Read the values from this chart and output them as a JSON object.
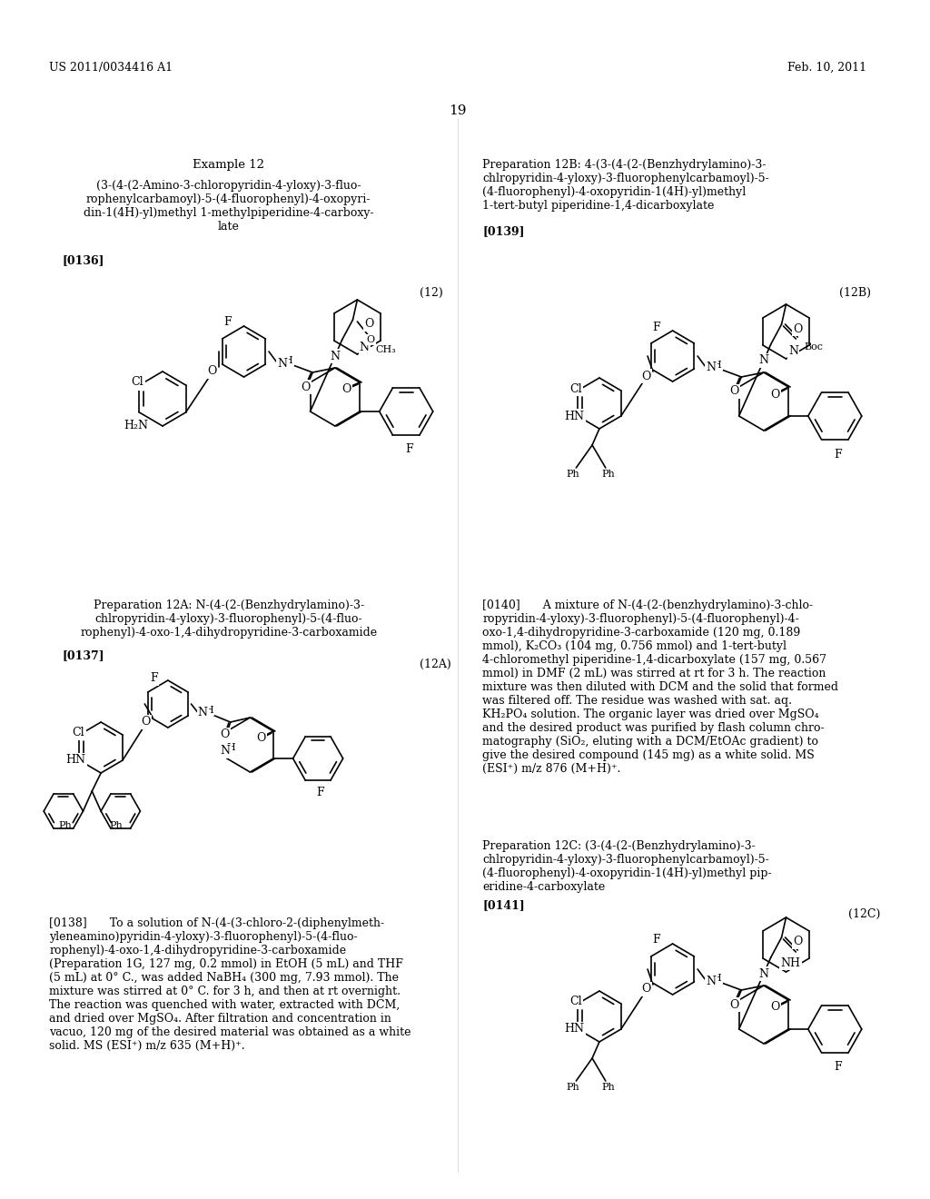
{
  "background_color": "#ffffff",
  "page_header_left": "US 2011/0034416 A1",
  "page_header_right": "Feb. 10, 2011",
  "page_number": "19",
  "left_title": "Example 12",
  "left_subtitle": "(3-(4-(2-Amino-3-chloropyridin-4-yloxy)-3-fluo-\nrophenylcarbamoyl)-5-(4-fluorophenyl)-4-oxopyri-\ndin-1(4H)-yl)methyl 1-methylpiperidine-4-carboxy-\nlate",
  "left_ref": "[0136]",
  "left_compound_label": "(12)",
  "prep12A_title": "Preparation 12A: N-(4-(2-(Benzhydrylamino)-3-\nchlropyridin-4-yloxy)-3-fluorophenyl)-5-(4-fluo-\nrophenyl)-4-oxo-1,4-dihydropyridine-3-carboxamide",
  "prep12A_ref": "[0137]",
  "prep12A_label": "(12A)",
  "prep12B_title": "Preparation 12B: 4-(3-(4-(2-(Benzhydrylamino)-3-\nchlropyridin-4-yloxy)-3-fluorophenylcarbamoyl)-5-\n(4-fluorophenyl)-4-oxopyridin-1(4H)-yl)methyl\n1-tert-butyl piperidine-1,4-dicarboxylate",
  "prep12B_ref": "[0139]",
  "prep12B_label": "(12B)",
  "prep12C_title": "Preparation 12C: (3-(4-(2-(Benzhydrylamino)-3-\nchlropyridin-4-yloxy)-3-fluorophenylcarbamoyl)-5-\n(4-fluorophenyl)-4-oxopyridin-1(4H)-yl)methyl pip-\neridine-4-carboxylate",
  "prep12C_ref": "[0141]",
  "prep12C_label": "(12C)",
  "para_138": "[0138]  To a solution of N-(4-(3-chloro-2-(diphenylmeth-\nyleneamino)pyridin-4-yloxy)-3-fluorophenyl)-5-(4-fluo-\nrophenyl)-4-oxo-1,4-dihydropyridine-3-carboxamide\n(Preparation 1G, 127 mg, 0.2 mmol) in EtOH (5 mL) and THF\n(5 mL) at 0° C., was added NaBH₄ (300 mg, 7.93 mmol). The\nmixture was stirred at 0° C. for 3 h, and then at rt overnight.\nThe reaction was quenched with water, extracted with DCM,\nand dried over MgSO₄. After filtration and concentration in\nvacuo, 120 mg of the desired material was obtained as a white\nsolid. MS (ESI⁺) m/z 635 (M+H)⁺.",
  "para_140": "[0140]  A mixture of N-(4-(2-(benzhydrylamino)-3-chlo-\nropyridin-4-yloxy)-3-fluorophenyl)-5-(4-fluorophenyl)-4-\noxo-1,4-dihydropyridine-3-carboxamide (120 mg, 0.189\nmmol), K₂CO₃ (104 mg, 0.756 mmol) and 1-tert-butyl\n4-chloromethyl piperidine-1,4-dicarboxylate (157 mg, 0.567\nmmol) in DMF (2 mL) was stirred at rt for 3 h. The reaction\nmixture was then diluted with DCM and the solid that formed\nwas filtered off. The residue was washed with sat. aq.\nKH₂PO₄ solution. The organic layer was dried over MgSO₄\nand the desired product was purified by flash column chro-\nmatography (SiO₂, eluting with a DCM/EtOAc gradient) to\ngive the desired compound (145 mg) as a white solid. MS\n(ESI⁺) m/z 876 (M+H)⁺."
}
